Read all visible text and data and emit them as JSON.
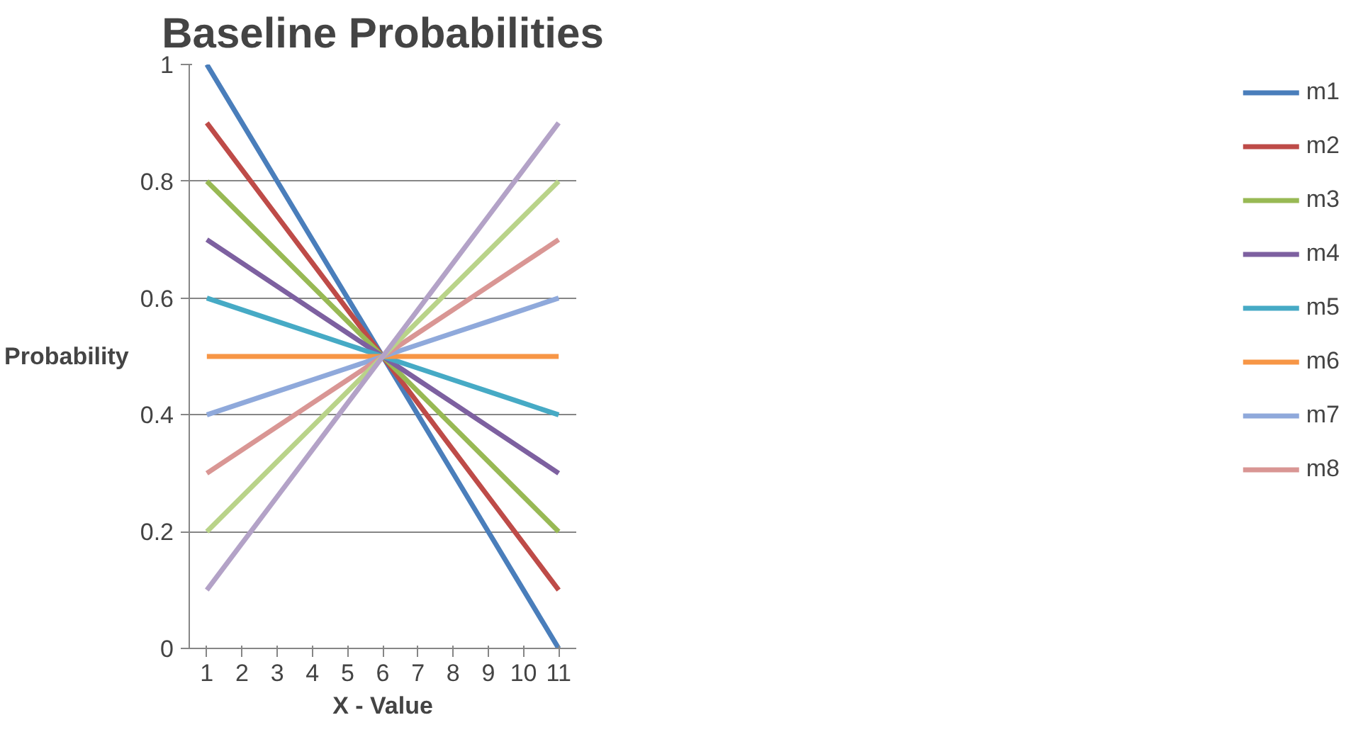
{
  "chart_data": {
    "type": "line",
    "title": "Baseline Probabilities",
    "xlabel": "X - Value",
    "ylabel": "Probability",
    "categories": [
      "1",
      "2",
      "3",
      "4",
      "5",
      "6",
      "7",
      "8",
      "9",
      "10",
      "11"
    ],
    "ylim": [
      0,
      1
    ],
    "yticks": [
      0,
      0.2,
      0.4,
      0.6,
      0.8,
      1
    ],
    "grid": "y",
    "legend": "right",
    "marker": "none",
    "line_style": "solid",
    "series": [
      {
        "name": "m1",
        "color": "#4a7ebb",
        "values": [
          1,
          0.9,
          0.8,
          0.7,
          0.6,
          0.5,
          0.4,
          0.3,
          0.2,
          0.1,
          0
        ]
      },
      {
        "name": "m2",
        "color": "#be4b48",
        "values": [
          0.9,
          0.82,
          0.74,
          0.66,
          0.58,
          0.5,
          0.42,
          0.34,
          0.26,
          0.18,
          0.1
        ]
      },
      {
        "name": "m3",
        "color": "#98b954",
        "values": [
          0.8,
          0.74,
          0.68,
          0.62,
          0.56,
          0.5,
          0.44,
          0.38,
          0.32,
          0.26,
          0.2
        ]
      },
      {
        "name": "m4",
        "color": "#7d60a0",
        "values": [
          0.7,
          0.66,
          0.62,
          0.58,
          0.54,
          0.5,
          0.46,
          0.42,
          0.38,
          0.34,
          0.3
        ]
      },
      {
        "name": "m5",
        "color": "#46aac5",
        "values": [
          0.6,
          0.58,
          0.56,
          0.54,
          0.52,
          0.5,
          0.48,
          0.46,
          0.44,
          0.42,
          0.4
        ]
      },
      {
        "name": "m6",
        "color": "#f79646",
        "values": [
          0.5,
          0.5,
          0.5,
          0.5,
          0.5,
          0.5,
          0.5,
          0.5,
          0.5,
          0.5,
          0.5
        ]
      },
      {
        "name": "m7",
        "color": "#8fa9db",
        "values": [
          0.4,
          0.42,
          0.44,
          0.46,
          0.48,
          0.5,
          0.52,
          0.54,
          0.56,
          0.58,
          0.6
        ]
      },
      {
        "name": "m8",
        "color": "#d99694",
        "values": [
          0.3,
          0.34,
          0.38,
          0.42,
          0.46,
          0.5,
          0.54,
          0.58,
          0.62,
          0.66,
          0.7
        ]
      },
      {
        "color": "#b9d389",
        "values": [
          0.2,
          0.26,
          0.32,
          0.38,
          0.44,
          0.5,
          0.56,
          0.62,
          0.68,
          0.74,
          0.8
        ]
      },
      {
        "color": "#b3a2c7",
        "values": [
          0.1,
          0.18,
          0.26,
          0.34,
          0.42,
          0.5,
          0.58,
          0.66,
          0.74,
          0.82,
          0.9
        ]
      }
    ]
  }
}
